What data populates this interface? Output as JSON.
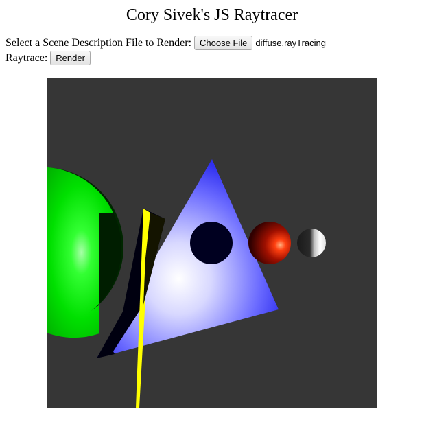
{
  "page": {
    "title": "Cory Sivek's JS Raytracer"
  },
  "file_select": {
    "label": "Select a Scene Description File to Render:",
    "button_label": "Choose File",
    "selected_file": "diffuse.rayTracing"
  },
  "raytrace": {
    "label": "Raytrace:",
    "button_label": "Render"
  },
  "render_output": {
    "background_color": "#363636",
    "green_sphere_color": "#00e600",
    "triangle_color": "#5a5aff",
    "yellow_plane_color": "#ffff00",
    "dark_sphere_color": "#000020",
    "red_sphere_color": "#cc1000",
    "white_sphere_color": "#ffffff"
  }
}
